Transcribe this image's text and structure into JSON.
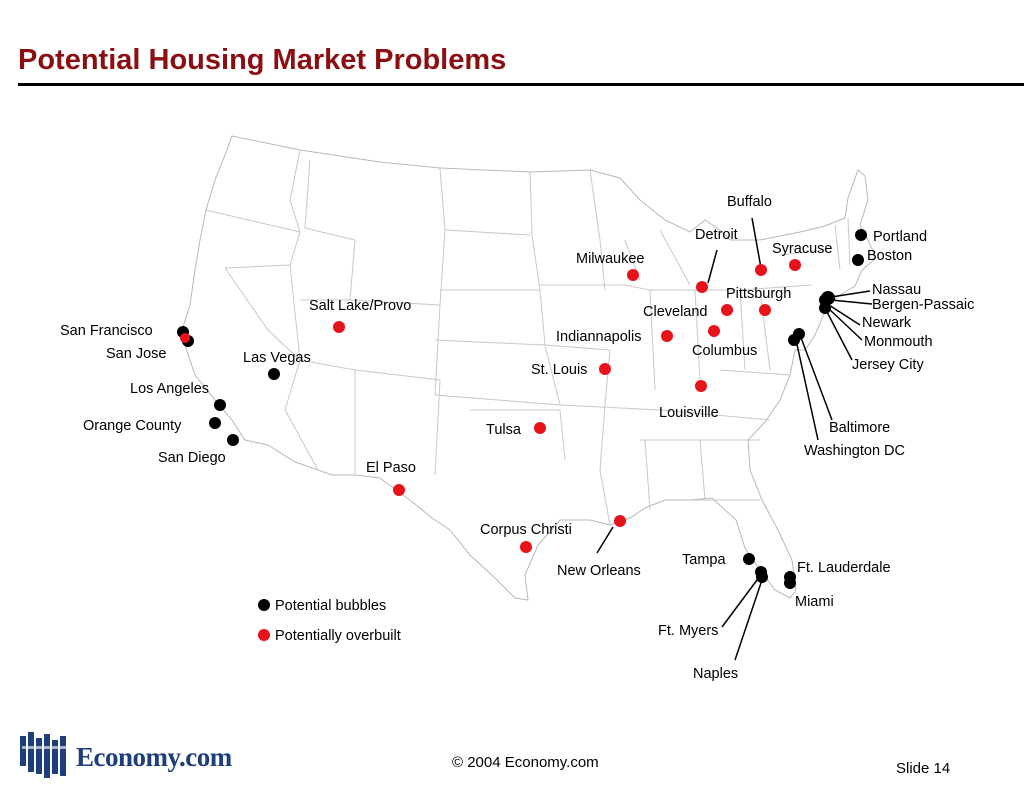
{
  "slide": {
    "title": "Potential Housing Market Problems",
    "copyright": "© 2004 Economy.com",
    "slide_number": "Slide 14",
    "logo_text": "Economy.com"
  },
  "colors": {
    "title": "#8b0f12",
    "bubble": "#000000",
    "overbuilt": "#e8131a",
    "logo": "#1f3f7a"
  },
  "legend": {
    "bubble_label": "Potential bubbles",
    "overbuilt_label": "Potentially overbuilt"
  },
  "cities": [
    {
      "name": "Buffalo",
      "type": "overbuilt"
    },
    {
      "name": "Detroit",
      "type": "overbuilt"
    },
    {
      "name": "Syracuse",
      "type": "overbuilt"
    },
    {
      "name": "Milwaukee",
      "type": "overbuilt"
    },
    {
      "name": "Pittsburgh",
      "type": "overbuilt"
    },
    {
      "name": "Cleveland",
      "type": "overbuilt"
    },
    {
      "name": "Indiannapolis",
      "type": "overbuilt"
    },
    {
      "name": "Columbus",
      "type": "overbuilt"
    },
    {
      "name": "St. Louis",
      "type": "overbuilt"
    },
    {
      "name": "Louisville",
      "type": "overbuilt"
    },
    {
      "name": "Tulsa",
      "type": "overbuilt"
    },
    {
      "name": "El Paso",
      "type": "overbuilt"
    },
    {
      "name": "Corpus Christi",
      "type": "overbuilt"
    },
    {
      "name": "New Orleans",
      "type": "overbuilt"
    },
    {
      "name": "Salt Lake/Provo",
      "type": "overbuilt"
    },
    {
      "name": "San Jose",
      "type": "overbuilt"
    },
    {
      "name": "San Francisco",
      "type": "bubble"
    },
    {
      "name": "Las Vegas",
      "type": "bubble"
    },
    {
      "name": "Los Angeles",
      "type": "bubble"
    },
    {
      "name": "Orange County",
      "type": "bubble"
    },
    {
      "name": "San Diego",
      "type": "bubble"
    },
    {
      "name": "Portland",
      "type": "bubble"
    },
    {
      "name": "Boston",
      "type": "bubble"
    },
    {
      "name": "Nassau",
      "type": "bubble"
    },
    {
      "name": "Bergen-Passaic",
      "type": "bubble"
    },
    {
      "name": "Newark",
      "type": "bubble"
    },
    {
      "name": "Monmouth",
      "type": "bubble"
    },
    {
      "name": "Jersey City",
      "type": "bubble"
    },
    {
      "name": "Baltimore",
      "type": "bubble"
    },
    {
      "name": "Washington DC",
      "type": "bubble"
    },
    {
      "name": "Tampa",
      "type": "bubble"
    },
    {
      "name": "Ft. Lauderdale",
      "type": "bubble"
    },
    {
      "name": "Miami",
      "type": "bubble"
    },
    {
      "name": "Ft. Myers",
      "type": "bubble"
    },
    {
      "name": "Naples",
      "type": "bubble"
    }
  ]
}
